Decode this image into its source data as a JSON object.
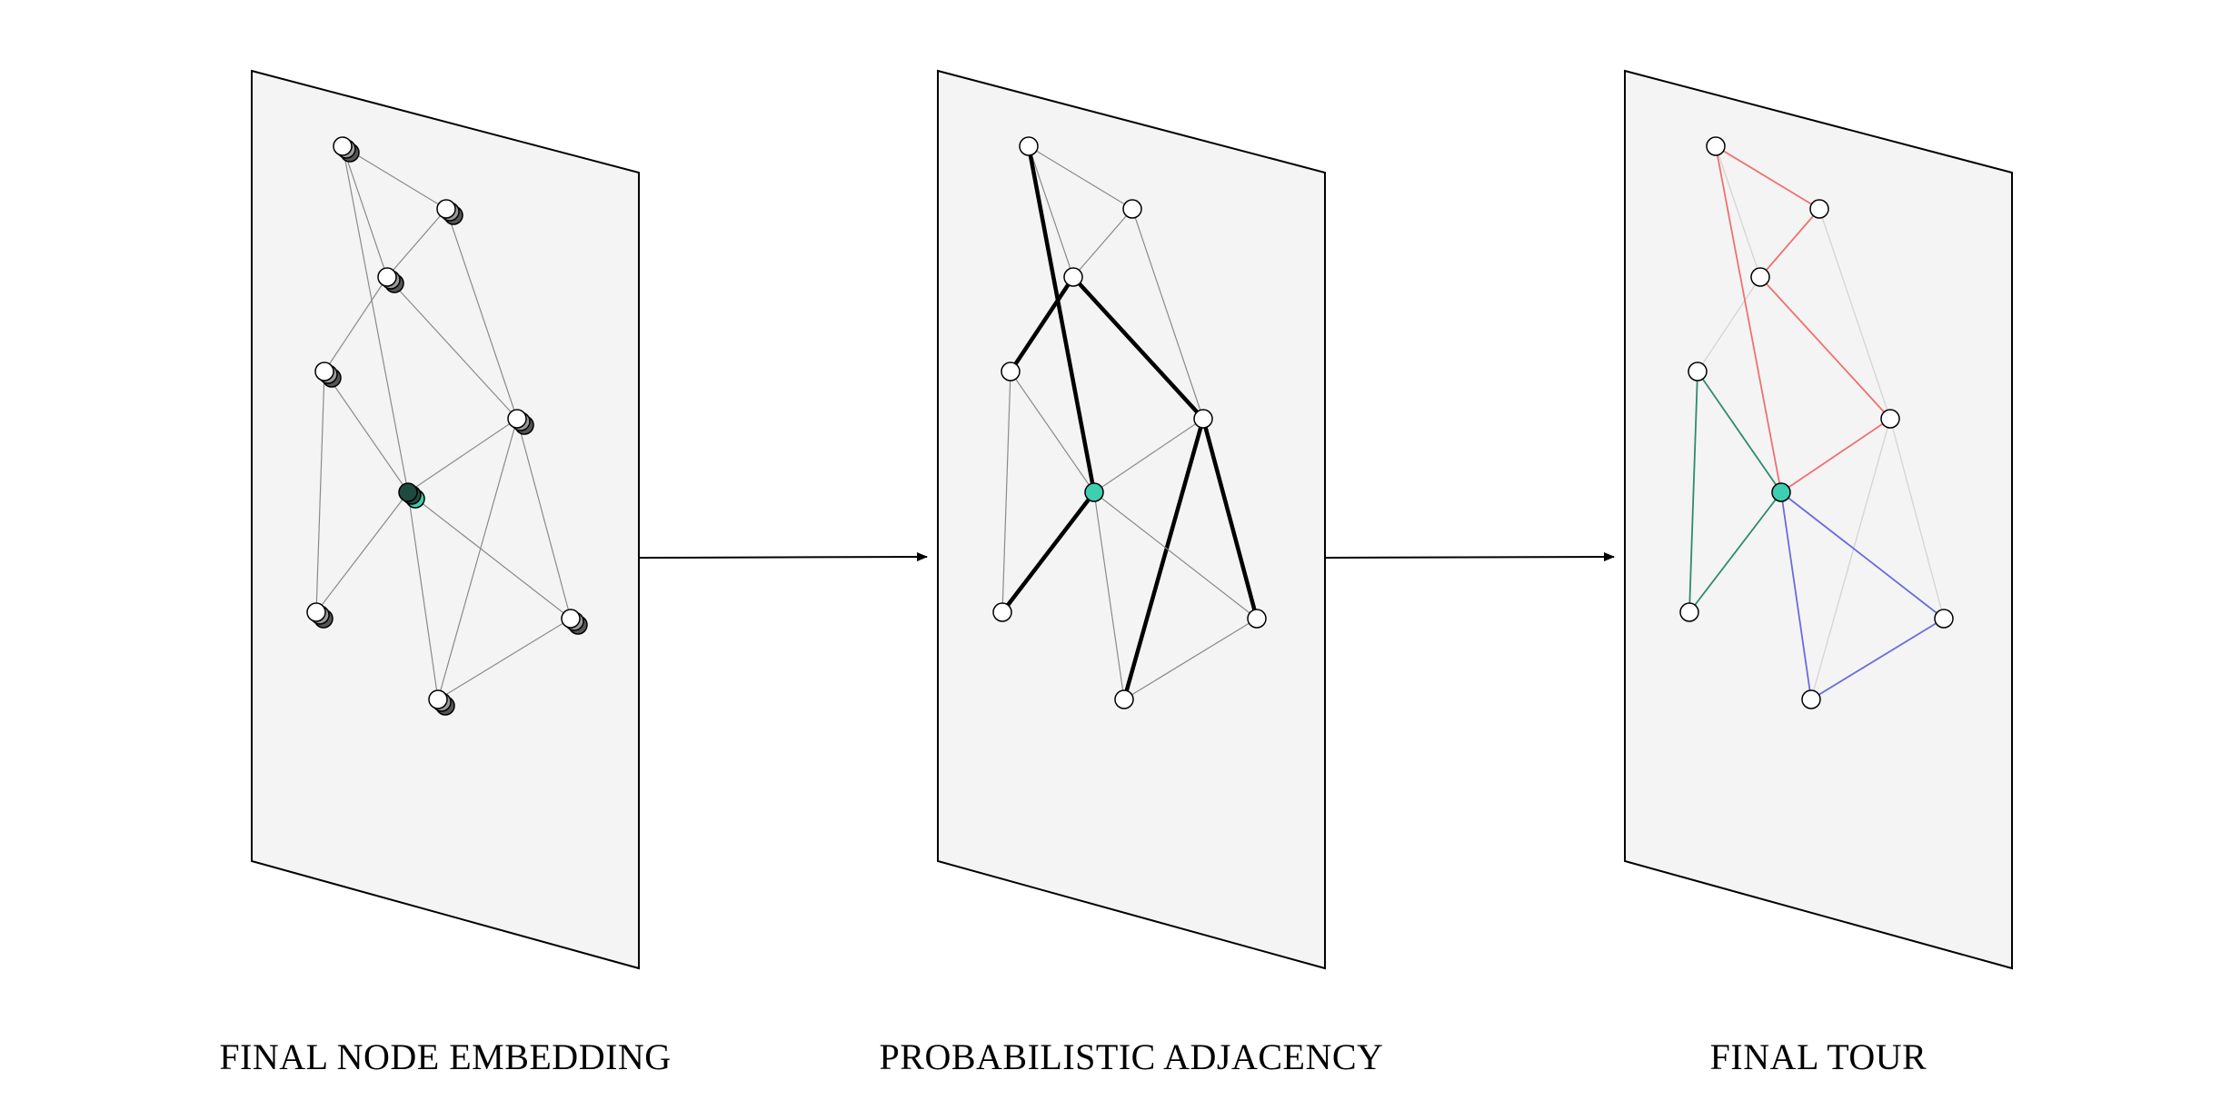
{
  "panels": [
    {
      "id": "embedding",
      "label": "FINAL NODE EMBEDDING"
    },
    {
      "id": "adjacency",
      "label": "PROBABILISTIC ADJACENCY"
    },
    {
      "id": "tour",
      "label": "FINAL TOUR"
    }
  ],
  "colors": {
    "panel_fill": "#f4f4f4",
    "panel_stroke": "#000000",
    "node_fill": "#ffffff",
    "node_shadow": "#555555",
    "depot_fill": "#3ecfb0",
    "depot_shadow": "#1f4a40",
    "edge_light": "#8a8a8a",
    "edge_faint": "#d6d6d6",
    "edge_heavy": "#000000",
    "route_red": "#f07070",
    "route_green": "#2e8a70",
    "route_blue": "#6b6bdc"
  },
  "graph": {
    "depot": 5,
    "edges": [
      [
        0,
        1
      ],
      [
        0,
        2
      ],
      [
        0,
        5
      ],
      [
        1,
        2
      ],
      [
        1,
        4
      ],
      [
        2,
        3
      ],
      [
        2,
        4
      ],
      [
        3,
        5
      ],
      [
        3,
        6
      ],
      [
        4,
        5
      ],
      [
        4,
        7
      ],
      [
        4,
        8
      ],
      [
        5,
        6
      ],
      [
        5,
        7
      ],
      [
        5,
        8
      ],
      [
        7,
        8
      ]
    ],
    "heavy_edges": [
      [
        0,
        5
      ],
      [
        2,
        3
      ],
      [
        2,
        4
      ],
      [
        5,
        6
      ],
      [
        4,
        7
      ],
      [
        4,
        8
      ]
    ],
    "routes": [
      {
        "color": "route_red",
        "path": [
          5,
          0,
          1,
          2,
          4,
          5
        ]
      },
      {
        "color": "route_green",
        "path": [
          5,
          3,
          6,
          5
        ]
      },
      {
        "color": "route_blue",
        "path": [
          5,
          7,
          8,
          5
        ]
      }
    ]
  }
}
